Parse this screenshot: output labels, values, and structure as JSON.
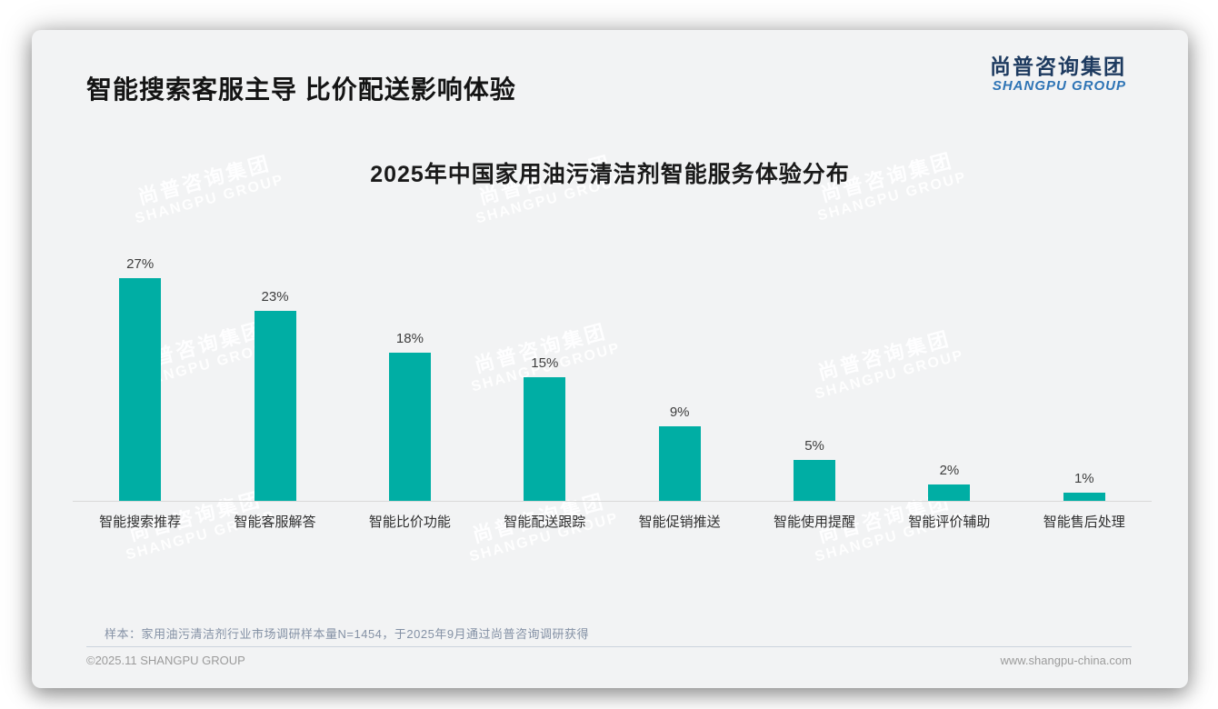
{
  "page": {
    "header_title": "智能搜索客服主导 比价配送影响体验",
    "logo": {
      "cn": "尚普咨询集团",
      "en": "SHANGPU GROUP"
    },
    "watermark": {
      "cn": "尚普咨询集团",
      "en": "SHANGPU GROUP"
    },
    "footnote": "样本：家用油污清洁剂行业市场调研样本量N=1454，于2025年9月通过尚普咨询调研获得",
    "footer": {
      "copyright": "©2025.11 SHANGPU GROUP",
      "website": "www.shangpu-china.com"
    },
    "colors": {
      "bar": "#00AEA4",
      "logo_cn": "#1d3a5f",
      "logo_en": "#2e74b5"
    }
  },
  "chart_data": {
    "type": "bar",
    "title": "2025年中国家用油污清洁剂智能服务体验分布",
    "categories": [
      "智能搜索推荐",
      "智能客服解答",
      "智能比价功能",
      "智能配送跟踪",
      "智能促销推送",
      "智能使用提醒",
      "智能评价辅助",
      "智能售后处理"
    ],
    "values": [
      27,
      23,
      18,
      15,
      9,
      5,
      2,
      1
    ],
    "value_labels": [
      "27%",
      "23%",
      "18%",
      "15%",
      "9%",
      "5%",
      "2%",
      "1%"
    ],
    "xlabel": "",
    "ylabel": "",
    "ylim": [
      0,
      30
    ],
    "grid": false,
    "legend": "none",
    "bar_color": "#00AEA4"
  }
}
